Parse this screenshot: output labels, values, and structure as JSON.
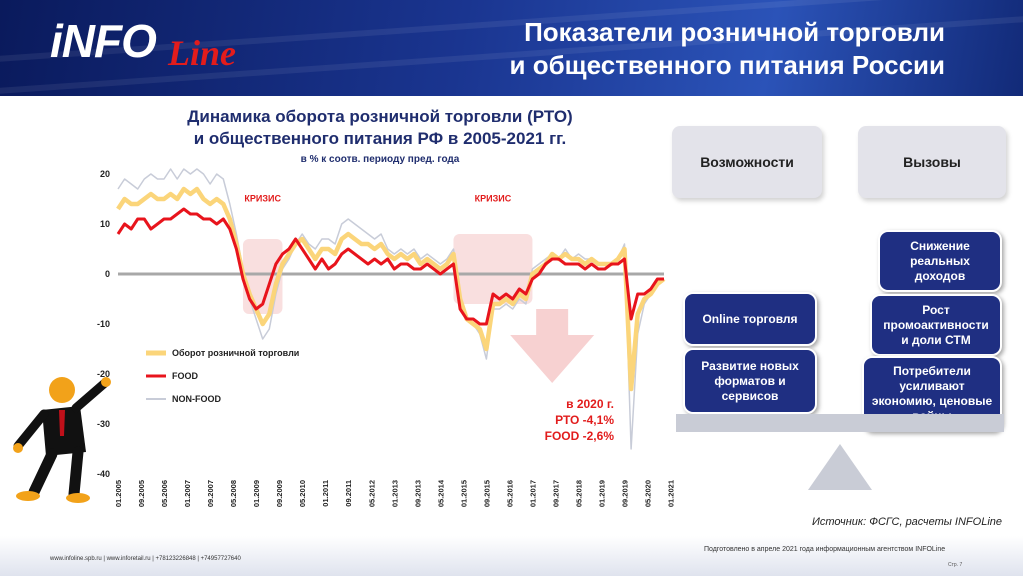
{
  "header": {
    "logo_main": "iNFO",
    "logo_script": "Line",
    "title_line1": "Показатели розничной торговли",
    "title_line2": "и общественного питания России"
  },
  "chart_data": {
    "type": "line",
    "title_line1": "Динамика оборота розничной торговли (РТО)",
    "title_line2": "и общественного питания РФ в 2005-2021 гг.",
    "subtitle": "в % к соотв. периоду пред. года",
    "ylim": [
      -40,
      20
    ],
    "yticks": [
      20,
      10,
      0,
      -10,
      -20,
      -30,
      -40
    ],
    "x_tick_labels": [
      "01.2005",
      "09.2005",
      "05.2006",
      "01.2007",
      "09.2007",
      "05.2008",
      "01.2009",
      "09.2009",
      "05.2010",
      "01.2011",
      "09.2011",
      "05.2012",
      "01.2013",
      "09.2013",
      "05.2014",
      "01.2015",
      "09.2015",
      "05.2016",
      "01.2017",
      "09.2017",
      "05.2018",
      "01.2019",
      "09.2019",
      "05.2020",
      "01.2021"
    ],
    "crisis_label": "КРИЗИС",
    "legend": {
      "placement": "left-lower"
    },
    "annotation": {
      "line1": "в 2020 г.",
      "line2": "РТО -4,1%",
      "line3": "FOOD -2,6%"
    },
    "series": [
      {
        "name": "Оборот розничной торговли",
        "color": "#fbd57a",
        "points": [
          [
            0,
            13
          ],
          [
            2,
            15
          ],
          [
            4,
            14
          ],
          [
            6,
            14
          ],
          [
            8,
            15
          ],
          [
            10,
            16
          ],
          [
            12,
            15
          ],
          [
            14,
            15
          ],
          [
            16,
            16
          ],
          [
            18,
            15
          ],
          [
            20,
            17
          ],
          [
            22,
            16
          ],
          [
            24,
            17
          ],
          [
            26,
            15
          ],
          [
            28,
            14
          ],
          [
            30,
            15
          ],
          [
            32,
            14
          ],
          [
            34,
            11
          ],
          [
            36,
            6
          ],
          [
            38,
            0
          ],
          [
            40,
            -4
          ],
          [
            42,
            -7
          ],
          [
            44,
            -10
          ],
          [
            46,
            -8
          ],
          [
            48,
            -2
          ],
          [
            50,
            2
          ],
          [
            52,
            4
          ],
          [
            54,
            6
          ],
          [
            56,
            7
          ],
          [
            58,
            5
          ],
          [
            60,
            3
          ],
          [
            62,
            5
          ],
          [
            64,
            5
          ],
          [
            66,
            4
          ],
          [
            68,
            7
          ],
          [
            70,
            8
          ],
          [
            72,
            7
          ],
          [
            74,
            6
          ],
          [
            76,
            6
          ],
          [
            78,
            5
          ],
          [
            80,
            6
          ],
          [
            82,
            4
          ],
          [
            84,
            3
          ],
          [
            86,
            4
          ],
          [
            88,
            3
          ],
          [
            90,
            4
          ],
          [
            92,
            2
          ],
          [
            94,
            3
          ],
          [
            96,
            2
          ],
          [
            98,
            1
          ],
          [
            100,
            2
          ],
          [
            102,
            4
          ],
          [
            104,
            -5
          ],
          [
            106,
            -9
          ],
          [
            108,
            -10
          ],
          [
            110,
            -11
          ],
          [
            112,
            -15
          ],
          [
            114,
            -6
          ],
          [
            116,
            -6
          ],
          [
            118,
            -5
          ],
          [
            120,
            -6
          ],
          [
            122,
            -4
          ],
          [
            124,
            -5
          ],
          [
            126,
            0
          ],
          [
            128,
            1
          ],
          [
            130,
            2
          ],
          [
            132,
            4
          ],
          [
            134,
            3
          ],
          [
            136,
            4
          ],
          [
            138,
            3
          ],
          [
            140,
            3
          ],
          [
            142,
            2
          ],
          [
            144,
            3
          ],
          [
            146,
            2
          ],
          [
            148,
            2
          ],
          [
            150,
            2
          ],
          [
            152,
            3
          ],
          [
            154,
            5
          ],
          [
            156,
            -23
          ],
          [
            158,
            -8
          ],
          [
            160,
            -5
          ],
          [
            162,
            -4
          ],
          [
            164,
            -2
          ],
          [
            166,
            -1
          ]
        ]
      },
      {
        "name": "FOOD",
        "color": "#e8141c",
        "points": [
          [
            0,
            8
          ],
          [
            2,
            10
          ],
          [
            4,
            9
          ],
          [
            6,
            11
          ],
          [
            8,
            11
          ],
          [
            10,
            9
          ],
          [
            12,
            10
          ],
          [
            14,
            11
          ],
          [
            16,
            11
          ],
          [
            18,
            12
          ],
          [
            20,
            13
          ],
          [
            22,
            12
          ],
          [
            24,
            12
          ],
          [
            26,
            11
          ],
          [
            28,
            11
          ],
          [
            30,
            10
          ],
          [
            32,
            11
          ],
          [
            34,
            9
          ],
          [
            36,
            5
          ],
          [
            38,
            -1
          ],
          [
            40,
            -5
          ],
          [
            42,
            -7
          ],
          [
            44,
            -6
          ],
          [
            46,
            -2
          ],
          [
            48,
            2
          ],
          [
            50,
            4
          ],
          [
            52,
            5
          ],
          [
            54,
            7
          ],
          [
            56,
            5
          ],
          [
            58,
            3
          ],
          [
            60,
            1
          ],
          [
            62,
            3
          ],
          [
            64,
            1
          ],
          [
            66,
            2
          ],
          [
            68,
            4
          ],
          [
            70,
            5
          ],
          [
            72,
            4
          ],
          [
            74,
            3
          ],
          [
            76,
            2
          ],
          [
            78,
            3
          ],
          [
            80,
            2
          ],
          [
            82,
            3
          ],
          [
            84,
            1
          ],
          [
            86,
            2
          ],
          [
            88,
            2
          ],
          [
            90,
            1
          ],
          [
            92,
            1
          ],
          [
            94,
            2
          ],
          [
            96,
            1
          ],
          [
            98,
            0
          ],
          [
            100,
            1
          ],
          [
            102,
            2
          ],
          [
            104,
            -7
          ],
          [
            106,
            -9
          ],
          [
            108,
            -9
          ],
          [
            110,
            -10
          ],
          [
            112,
            -10
          ],
          [
            114,
            -4
          ],
          [
            116,
            -5
          ],
          [
            118,
            -4
          ],
          [
            120,
            -5
          ],
          [
            122,
            -3
          ],
          [
            124,
            -4
          ],
          [
            126,
            -1
          ],
          [
            128,
            0
          ],
          [
            130,
            2
          ],
          [
            132,
            3
          ],
          [
            134,
            3
          ],
          [
            136,
            2
          ],
          [
            138,
            2
          ],
          [
            140,
            2
          ],
          [
            142,
            1
          ],
          [
            144,
            2
          ],
          [
            146,
            1
          ],
          [
            148,
            1
          ],
          [
            150,
            2
          ],
          [
            152,
            2
          ],
          [
            154,
            3
          ],
          [
            156,
            -9
          ],
          [
            158,
            -4
          ],
          [
            160,
            -4
          ],
          [
            162,
            -3
          ],
          [
            164,
            -1
          ],
          [
            166,
            -1
          ]
        ]
      },
      {
        "name": "NON-FOOD",
        "color": "#c8ccd8",
        "points": [
          [
            0,
            17
          ],
          [
            2,
            19
          ],
          [
            4,
            18
          ],
          [
            6,
            17
          ],
          [
            8,
            19
          ],
          [
            10,
            20
          ],
          [
            12,
            19
          ],
          [
            14,
            19
          ],
          [
            16,
            21
          ],
          [
            18,
            19
          ],
          [
            20,
            21
          ],
          [
            22,
            20
          ],
          [
            24,
            21
          ],
          [
            26,
            20
          ],
          [
            28,
            18
          ],
          [
            30,
            20
          ],
          [
            32,
            19
          ],
          [
            34,
            14
          ],
          [
            36,
            8
          ],
          [
            38,
            1
          ],
          [
            40,
            -5
          ],
          [
            42,
            -9
          ],
          [
            44,
            -13
          ],
          [
            46,
            -11
          ],
          [
            48,
            -4
          ],
          [
            50,
            1
          ],
          [
            52,
            3
          ],
          [
            54,
            6
          ],
          [
            56,
            8
          ],
          [
            58,
            6
          ],
          [
            60,
            5
          ],
          [
            62,
            7
          ],
          [
            64,
            7
          ],
          [
            66,
            6
          ],
          [
            68,
            10
          ],
          [
            70,
            11
          ],
          [
            72,
            10
          ],
          [
            74,
            9
          ],
          [
            76,
            8
          ],
          [
            78,
            7
          ],
          [
            80,
            8
          ],
          [
            82,
            5
          ],
          [
            84,
            4
          ],
          [
            86,
            5
          ],
          [
            88,
            4
          ],
          [
            90,
            5
          ],
          [
            92,
            3
          ],
          [
            94,
            4
          ],
          [
            96,
            3
          ],
          [
            98,
            2
          ],
          [
            100,
            3
          ],
          [
            102,
            5
          ],
          [
            104,
            -4
          ],
          [
            106,
            -9
          ],
          [
            108,
            -10
          ],
          [
            110,
            -12
          ],
          [
            112,
            -17
          ],
          [
            114,
            -7
          ],
          [
            116,
            -7
          ],
          [
            118,
            -6
          ],
          [
            120,
            -7
          ],
          [
            122,
            -5
          ],
          [
            124,
            -6
          ],
          [
            126,
            1
          ],
          [
            128,
            2
          ],
          [
            130,
            3
          ],
          [
            132,
            4
          ],
          [
            134,
            3
          ],
          [
            136,
            5
          ],
          [
            138,
            3
          ],
          [
            140,
            4
          ],
          [
            142,
            3
          ],
          [
            144,
            3
          ],
          [
            146,
            2
          ],
          [
            148,
            2
          ],
          [
            150,
            2
          ],
          [
            152,
            3
          ],
          [
            154,
            6
          ],
          [
            156,
            -35
          ],
          [
            158,
            -12
          ],
          [
            160,
            -6
          ],
          [
            162,
            -4
          ],
          [
            164,
            -2
          ],
          [
            166,
            -1
          ]
        ]
      }
    ]
  },
  "panel": {
    "opportunities": "Возможности",
    "challenges": "Вызовы",
    "card_online": "Online торговля",
    "card_formats": "Развитие новых форматов и сервисов",
    "card_income": "Снижение реальных доходов",
    "card_promo": "Рост промоактивности и доли СТМ",
    "card_consumers": "Потребители усиливают экономию, ценовые войны"
  },
  "source": "Источник: ФСГС, расчеты INFOLine",
  "footer": {
    "left": "www.infoline.spb.ru | www.inforetail.ru | +78123226848 | +74957727640",
    "right": "Подготовлено в апреле 2021 года информационным агентством INFOLine",
    "page": "Стр. 7"
  },
  "colors": {
    "header_dark": "#0a1a5c",
    "card_blue": "#1f2f82",
    "accent_red": "#e21c1c",
    "rto_yellow": "#fbd57a"
  }
}
